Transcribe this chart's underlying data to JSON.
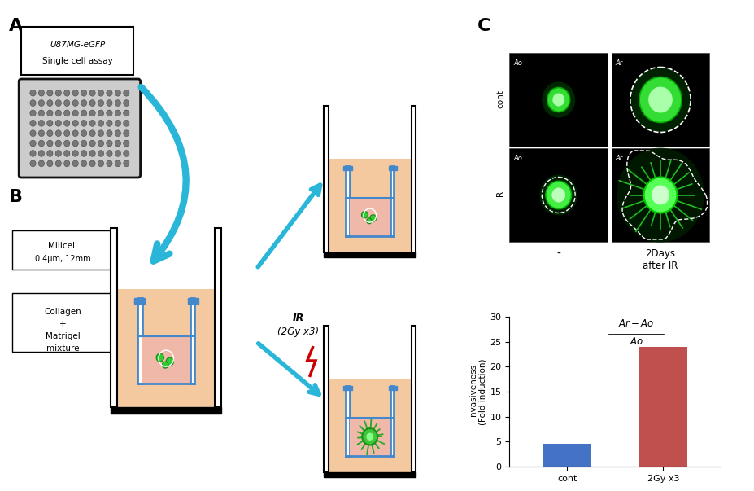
{
  "bg_color": "#ffffff",
  "section_A_label": "A",
  "section_B_label": "B",
  "section_C_label": "C",
  "plate_box_text_line1": "U87MG-eGFP",
  "plate_box_text_line2": "Single cell assay",
  "milicell_label": "Milicell",
  "milicell_detail": "0.4μm, 12mm",
  "ir_label": "IR",
  "ir_detail": "(2Gy x3)",
  "bar_values": [
    4.5,
    24.0
  ],
  "bar_colors": [
    "#4472c4",
    "#c0504d"
  ],
  "bar_labels": [
    "cont",
    "2Gy x3"
  ],
  "ylabel": "Invasiveness\n(Fold induction)",
  "ylim": [
    0,
    30
  ],
  "yticks": [
    0,
    5,
    10,
    15,
    20,
    25,
    30
  ],
  "arrow_color": "#29b6d8",
  "flesh_color": "#f5c9a0",
  "cell_green": "#44dd44",
  "milicell_blue": "#4488cc",
  "minus_label": "-",
  "days_label": "2Days\nafter IR"
}
